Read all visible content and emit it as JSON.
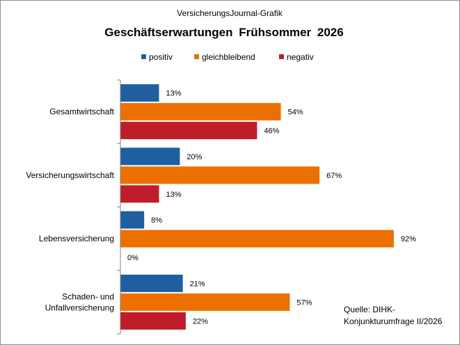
{
  "chart_data": {
    "type": "bar",
    "orientation": "horizontal",
    "supertitle": "VersicherungsJournal-Grafik",
    "title": "Geschäftserwartungen  Frühsommer  2026",
    "categories": [
      "Gesamtwirtschaft",
      "Versicherungswirtschaft",
      "Lebensversicherung",
      "Schaden- und Unfallversicherung"
    ],
    "category_lines": [
      [
        "Gesamtwirtschaft"
      ],
      [
        "Versicherungswirtschaft"
      ],
      [
        "Lebensversicherung"
      ],
      [
        "Schaden- und",
        "Unfallversicherung"
      ]
    ],
    "series": [
      {
        "name": "positiv",
        "color": "#1f5fa0",
        "values": [
          13,
          20,
          8,
          21
        ]
      },
      {
        "name": "gleichbleibend",
        "color": "#ec7000",
        "values": [
          54,
          67,
          92,
          57
        ]
      },
      {
        "name": "negativ",
        "color": "#c01d2a",
        "values": [
          46,
          13,
          0,
          22
        ]
      }
    ],
    "value_suffix": "%",
    "xlim": [
      0,
      100
    ],
    "legend_position": "top",
    "grid": false,
    "note_lines": [
      "Quelle:  DIHK-",
      "Konjunkturumfrage  II/2026"
    ]
  }
}
